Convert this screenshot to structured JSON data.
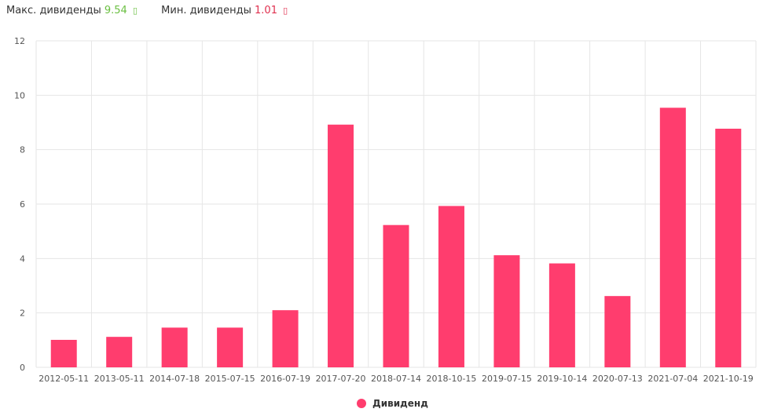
{
  "header": {
    "max_label": "Макс. дивиденды",
    "max_value": "9.54",
    "max_glyph": "▯",
    "min_label": "Мин. дивиденды",
    "min_value": "1.01",
    "min_glyph": "▯"
  },
  "colors": {
    "bar": "#ff3d6e",
    "grid": "#e6e6e6",
    "max_value": "#6abf40",
    "min_value": "#e0304f"
  },
  "chart_data": {
    "type": "bar",
    "categories": [
      "2012-05-11",
      "2013-05-11",
      "2014-07-18",
      "2015-07-15",
      "2016-07-19",
      "2017-07-20",
      "2018-07-14",
      "2018-10-15",
      "2019-07-15",
      "2019-10-14",
      "2020-07-13",
      "2021-07-04",
      "2021-10-19"
    ],
    "series": [
      {
        "name": "Дивиденд",
        "values": [
          1.01,
          1.12,
          1.46,
          1.46,
          2.1,
          8.92,
          5.23,
          5.93,
          4.12,
          3.82,
          2.62,
          9.54,
          8.77
        ]
      }
    ],
    "ylim": [
      0,
      12
    ],
    "yticks": [
      0,
      2,
      4,
      6,
      8,
      10,
      12
    ],
    "grid": true,
    "legend": "bottom-center",
    "title": "",
    "xlabel": "",
    "ylabel": ""
  }
}
